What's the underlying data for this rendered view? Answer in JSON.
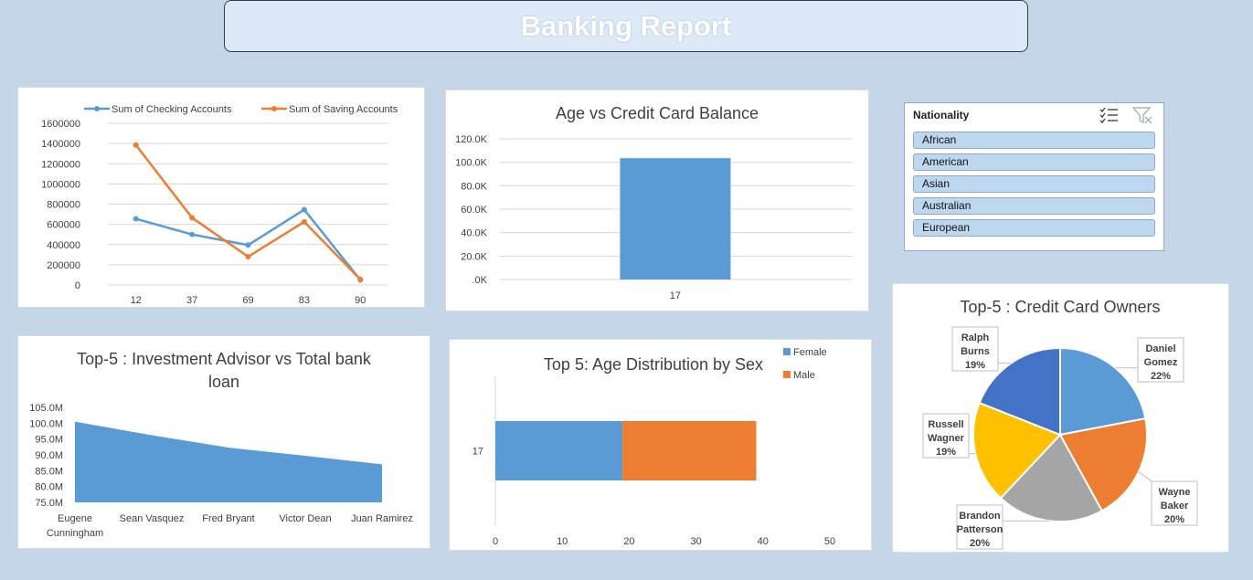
{
  "report": {
    "title": "Banking Report"
  },
  "slicer": {
    "title": "Nationality",
    "icons": [
      "multi-select-icon",
      "clear-filter-icon"
    ],
    "items": [
      "African",
      "American",
      "Asian",
      "Australian",
      "European"
    ]
  },
  "chart_data": [
    {
      "id": "accounts",
      "type": "line",
      "title": "",
      "categories": [
        "12",
        "37",
        "69",
        "83",
        "90"
      ],
      "series": [
        {
          "name": "Sum of Checking Accounts",
          "color": "#5b9bd5",
          "values": [
            655000,
            500000,
            395000,
            745000,
            50000
          ]
        },
        {
          "name": "Sum of Saving Accounts",
          "color": "#ed7d31",
          "values": [
            1385000,
            665000,
            280000,
            625000,
            55000
          ]
        }
      ],
      "ylim": [
        0,
        1600000
      ],
      "yticks": [
        "0",
        "200000",
        "400000",
        "600000",
        "800000",
        "1000000",
        "1200000",
        "1400000",
        "1600000"
      ],
      "legend": "top",
      "grid": true
    },
    {
      "id": "age_credit",
      "type": "bar",
      "title": "Age vs Credit Card Balance",
      "categories": [
        "17"
      ],
      "values": [
        103500
      ],
      "color": "#5b9bd5",
      "ylim": [
        0,
        120000
      ],
      "yticks": [
        ".0K",
        "20.0K",
        "40.0K",
        "60.0K",
        "80.0K",
        "100.0K",
        "120.0K"
      ],
      "grid": true
    },
    {
      "id": "advisor_loan",
      "type": "area",
      "title": "Top-5 : Investment Advisor vs Total bank loan",
      "categories": [
        "Eugene Cunningham",
        "Sean Vasquez",
        "Fred Bryant",
        "Victor Dean",
        "Juan Ramirez"
      ],
      "values": [
        100500000,
        96200000,
        92300000,
        89700000,
        87000000
      ],
      "color": "#5b9bd5",
      "ylim": [
        75000000,
        105000000
      ],
      "yticks": [
        "75.0M",
        "80.0M",
        "85.0M",
        "90.0M",
        "95.0M",
        "100.0M",
        "105.0M"
      ]
    },
    {
      "id": "age_sex",
      "type": "bar",
      "orientation": "horizontal",
      "stacked": true,
      "title": "Top 5: Age Distribution by Sex",
      "categories": [
        "17"
      ],
      "series": [
        {
          "name": "Female",
          "color": "#5b9bd5",
          "values": [
            19
          ]
        },
        {
          "name": "Male",
          "color": "#ed7d31",
          "values": [
            20
          ]
        }
      ],
      "xlim": [
        0,
        50
      ],
      "xticks": [
        "0",
        "10",
        "20",
        "30",
        "40",
        "50"
      ],
      "legend": "top-right"
    },
    {
      "id": "card_owners",
      "type": "pie",
      "title": "Top-5 : Credit Card Owners",
      "slices": [
        {
          "label": "Daniel Gomez",
          "lines": [
            "Daniel",
            "Gomez"
          ],
          "pct_label": "22%",
          "value": 22,
          "color": "#5b9bd5"
        },
        {
          "label": "Wayne Baker",
          "lines": [
            "Wayne",
            "Baker"
          ],
          "pct_label": "20%",
          "value": 20,
          "color": "#ed7d31"
        },
        {
          "label": "Brandon Patterson",
          "lines": [
            "Brandon",
            "Patterson"
          ],
          "pct_label": "20%",
          "value": 20,
          "color": "#a5a5a5"
        },
        {
          "label": "Russell Wagner",
          "lines": [
            "Russell",
            "Wagner"
          ],
          "pct_label": "19%",
          "value": 19,
          "color": "#ffc000"
        },
        {
          "label": "Ralph Burns",
          "lines": [
            "Ralph",
            "Burns"
          ],
          "pct_label": "19%",
          "value": 19,
          "color": "#4472c4"
        }
      ]
    }
  ]
}
